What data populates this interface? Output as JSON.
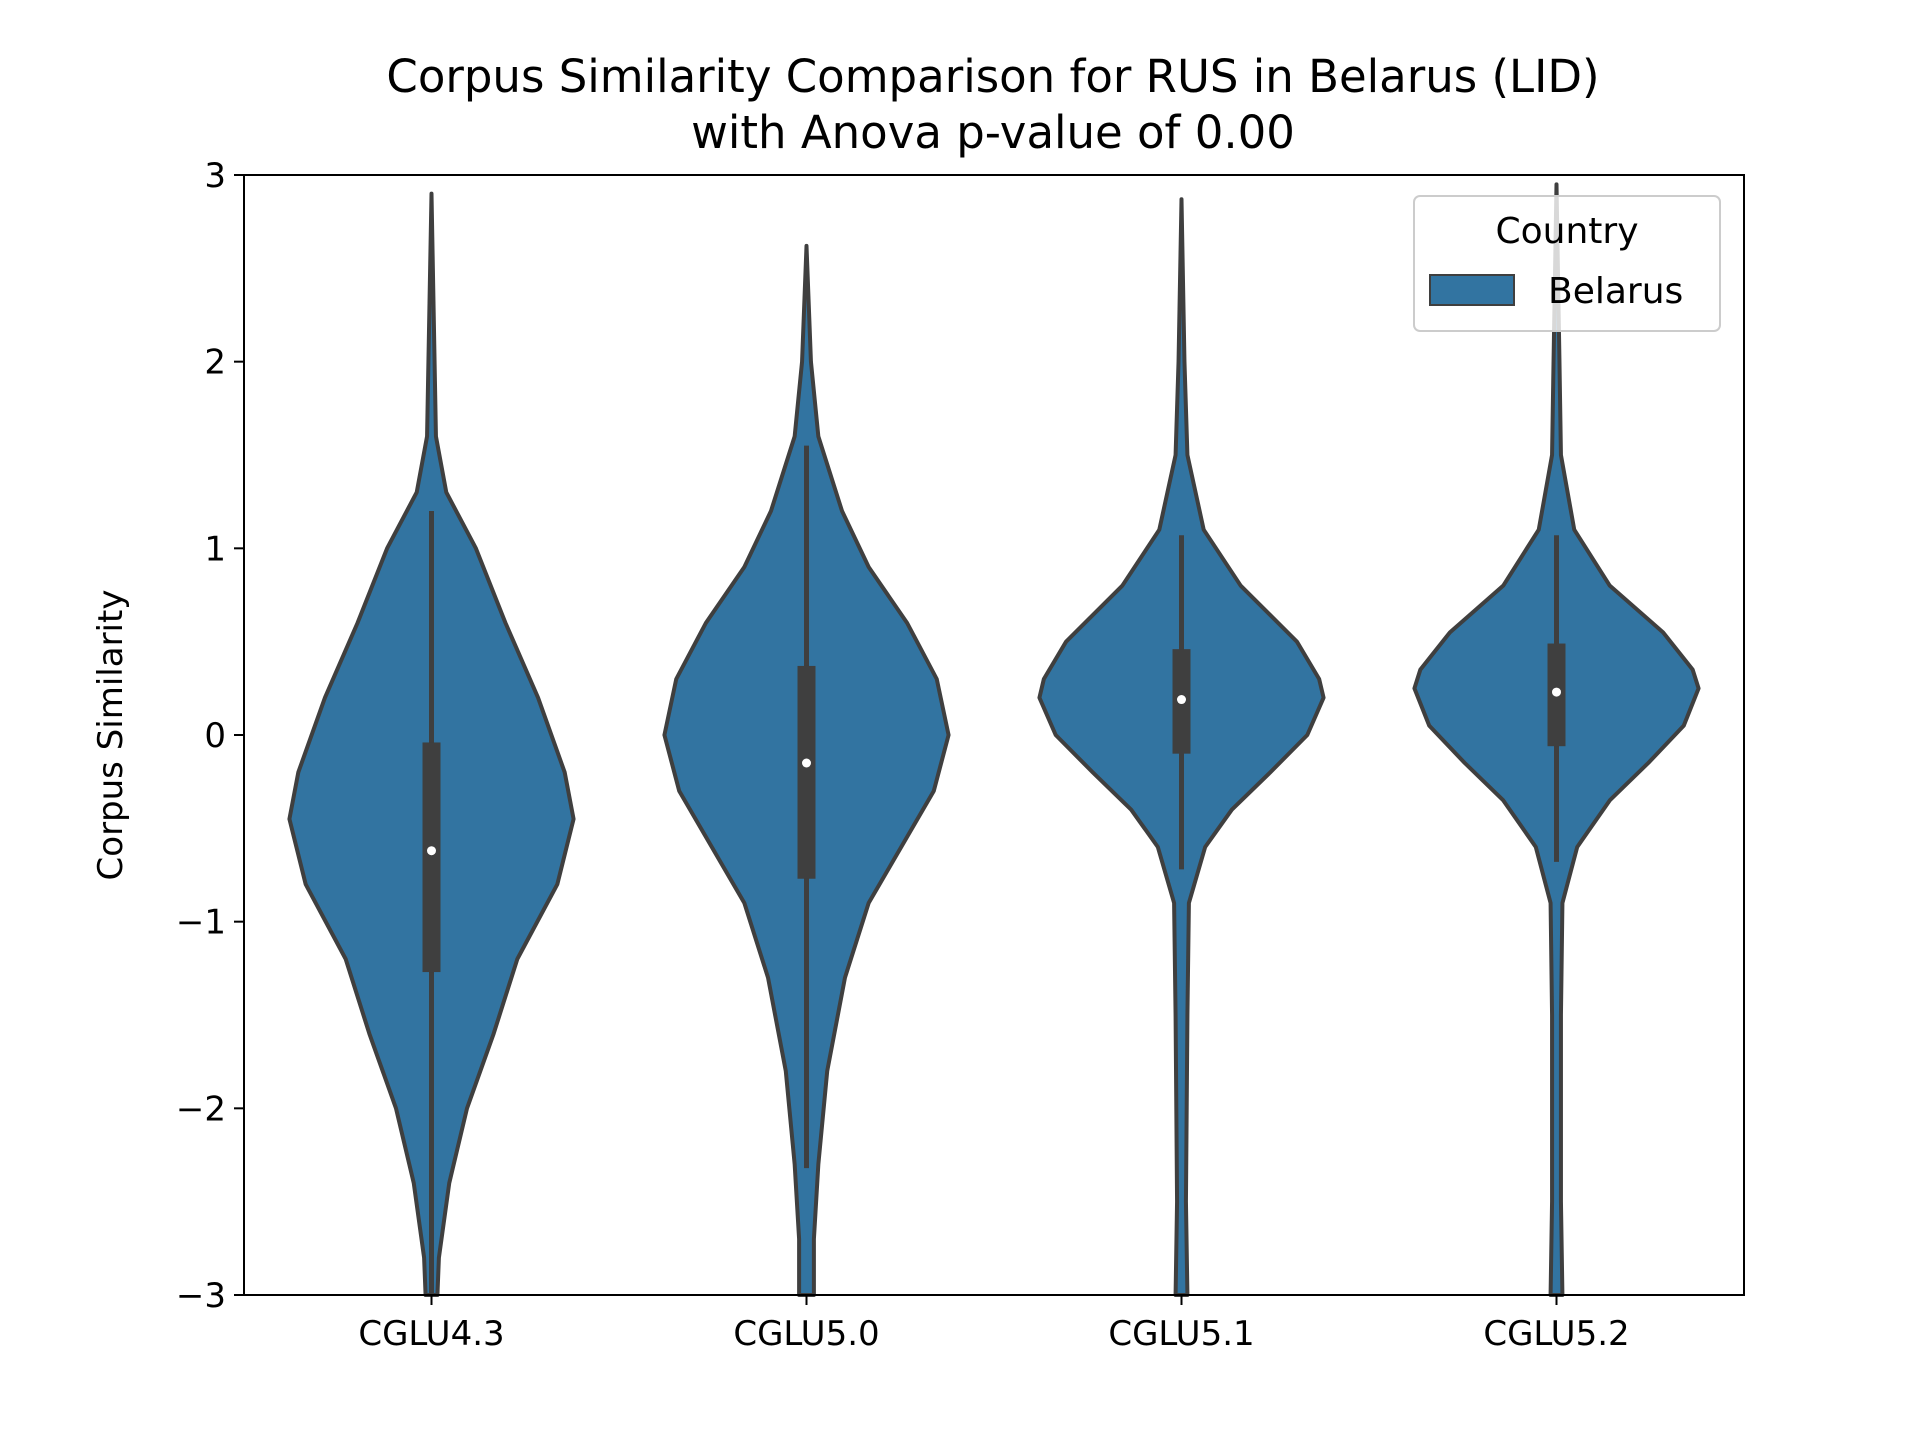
{
  "chart_data": {
    "type": "violin",
    "title_line1": "Corpus Similarity Comparison for RUS in Belarus (LID)",
    "title_line2": "with Anova p-value of 0.00",
    "xlabel": "",
    "ylabel": "Corpus Similarity",
    "ylim": [
      -3,
      3
    ],
    "yticks": [
      -3,
      -2,
      -1,
      0,
      1,
      2,
      3
    ],
    "ytick_labels": [
      "−3",
      "−2",
      "−1",
      "0",
      "1",
      "2",
      "3"
    ],
    "categories": [
      "CGLU4.3",
      "CGLU5.0",
      "CGLU5.1",
      "CGLU5.2"
    ],
    "legend": {
      "title": "Country",
      "entries": [
        {
          "label": "Belarus",
          "color": "#3274a1"
        }
      ],
      "placement": "top-right"
    },
    "colors": {
      "fill": "#3274a1",
      "edge": "#3f3f3f",
      "median": "#ffffff"
    },
    "series": [
      {
        "name": "Belarus",
        "violins": [
          {
            "category": "CGLU4.3",
            "max": 2.9,
            "min": -3.0,
            "q1": -1.27,
            "median": -0.62,
            "q3": -0.04,
            "whisker_low": -3.0,
            "whisker_high": 1.2,
            "profile": [
              [
                2.9,
                0.0
              ],
              [
                1.6,
                0.03
              ],
              [
                1.3,
                0.1
              ],
              [
                1.0,
                0.3
              ],
              [
                0.6,
                0.5
              ],
              [
                0.2,
                0.72
              ],
              [
                -0.2,
                0.9
              ],
              [
                -0.45,
                0.96
              ],
              [
                -0.8,
                0.85
              ],
              [
                -1.2,
                0.58
              ],
              [
                -1.6,
                0.42
              ],
              [
                -2.0,
                0.24
              ],
              [
                -2.4,
                0.12
              ],
              [
                -2.8,
                0.05
              ],
              [
                -3.0,
                0.04
              ]
            ]
          },
          {
            "category": "CGLU5.0",
            "max": 2.62,
            "min": -3.0,
            "q1": -0.77,
            "median": -0.15,
            "q3": 0.37,
            "whisker_low": -2.32,
            "whisker_high": 1.55,
            "profile": [
              [
                2.62,
                0.0
              ],
              [
                2.0,
                0.03
              ],
              [
                1.6,
                0.08
              ],
              [
                1.2,
                0.24
              ],
              [
                0.9,
                0.42
              ],
              [
                0.6,
                0.68
              ],
              [
                0.3,
                0.88
              ],
              [
                0.0,
                0.96
              ],
              [
                -0.3,
                0.86
              ],
              [
                -0.6,
                0.64
              ],
              [
                -0.9,
                0.42
              ],
              [
                -1.3,
                0.26
              ],
              [
                -1.8,
                0.14
              ],
              [
                -2.3,
                0.08
              ],
              [
                -2.7,
                0.05
              ],
              [
                -3.0,
                0.05
              ]
            ]
          },
          {
            "category": "CGLU5.1",
            "max": 2.87,
            "min": -3.0,
            "q1": -0.1,
            "median": 0.19,
            "q3": 0.46,
            "whisker_low": -0.72,
            "whisker_high": 1.07,
            "profile": [
              [
                2.87,
                0.0
              ],
              [
                2.0,
                0.02
              ],
              [
                1.5,
                0.04
              ],
              [
                1.1,
                0.15
              ],
              [
                0.8,
                0.4
              ],
              [
                0.5,
                0.78
              ],
              [
                0.3,
                0.93
              ],
              [
                0.2,
                0.96
              ],
              [
                0.0,
                0.85
              ],
              [
                -0.2,
                0.6
              ],
              [
                -0.4,
                0.34
              ],
              [
                -0.6,
                0.16
              ],
              [
                -0.9,
                0.05
              ],
              [
                -1.5,
                0.04
              ],
              [
                -2.5,
                0.03
              ],
              [
                -3.0,
                0.04
              ]
            ]
          },
          {
            "category": "CGLU5.2",
            "max": 2.95,
            "min": -3.0,
            "q1": -0.06,
            "median": 0.23,
            "q3": 0.49,
            "whisker_low": -0.68,
            "whisker_high": 1.07,
            "profile": [
              [
                2.95,
                0.0
              ],
              [
                2.0,
                0.02
              ],
              [
                1.5,
                0.03
              ],
              [
                1.1,
                0.12
              ],
              [
                0.8,
                0.36
              ],
              [
                0.55,
                0.72
              ],
              [
                0.35,
                0.92
              ],
              [
                0.25,
                0.96
              ],
              [
                0.05,
                0.86
              ],
              [
                -0.15,
                0.62
              ],
              [
                -0.35,
                0.36
              ],
              [
                -0.6,
                0.14
              ],
              [
                -0.9,
                0.04
              ],
              [
                -1.5,
                0.03
              ],
              [
                -2.5,
                0.03
              ],
              [
                -3.0,
                0.04
              ]
            ]
          }
        ]
      }
    ]
  }
}
